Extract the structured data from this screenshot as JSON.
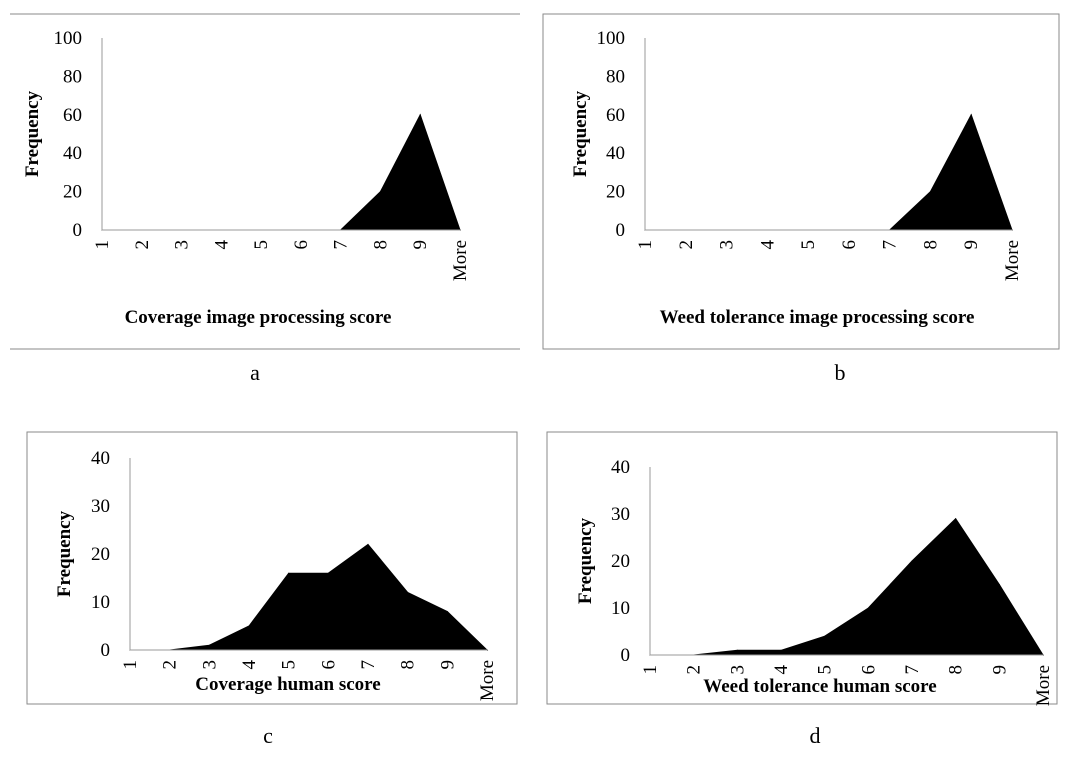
{
  "chart_data": [
    {
      "type": "area",
      "panel_label": "a",
      "xlabel": "Coverage image processing score",
      "ylabel": "Frequency",
      "categories": [
        "1",
        "2",
        "3",
        "4",
        "5",
        "6",
        "7",
        "8",
        "9",
        "More"
      ],
      "values": [
        0,
        0,
        0,
        0,
        0,
        0,
        0,
        20,
        60,
        0
      ],
      "ylim": [
        0,
        100
      ],
      "yticks": [
        0,
        20,
        40,
        60,
        80,
        100
      ],
      "grid": false,
      "fill_color": "#000000"
    },
    {
      "type": "area",
      "panel_label": "b",
      "xlabel": "Weed tolerance image processing score",
      "ylabel": "Frequency",
      "categories": [
        "1",
        "2",
        "3",
        "4",
        "5",
        "6",
        "7",
        "8",
        "9",
        "More"
      ],
      "values": [
        0,
        0,
        0,
        0,
        0,
        0,
        0,
        20,
        60,
        0
      ],
      "ylim": [
        0,
        100
      ],
      "yticks": [
        0,
        20,
        40,
        60,
        80,
        100
      ],
      "grid": false,
      "fill_color": "#000000"
    },
    {
      "type": "area",
      "panel_label": "c",
      "xlabel": "Coverage human score",
      "ylabel": "Frequency",
      "categories": [
        "1",
        "2",
        "3",
        "4",
        "5",
        "6",
        "7",
        "8",
        "9",
        "More"
      ],
      "values": [
        0,
        0,
        1,
        5,
        16,
        16,
        22,
        12,
        8,
        0
      ],
      "ylim": [
        0,
        40
      ],
      "yticks": [
        0,
        10,
        20,
        30,
        40
      ],
      "grid": false,
      "fill_color": "#000000"
    },
    {
      "type": "area",
      "panel_label": "d",
      "xlabel": "Weed tolerance human score",
      "ylabel": "Frequency",
      "categories": [
        "1",
        "2",
        "3",
        "4",
        "5",
        "6",
        "7",
        "8",
        "9",
        "More"
      ],
      "values": [
        0,
        0,
        1,
        1,
        4,
        10,
        20,
        29,
        15,
        0
      ],
      "ylim": [
        0,
        40
      ],
      "yticks": [
        0,
        10,
        20,
        30,
        40
      ],
      "grid": false,
      "fill_color": "#000000"
    }
  ]
}
